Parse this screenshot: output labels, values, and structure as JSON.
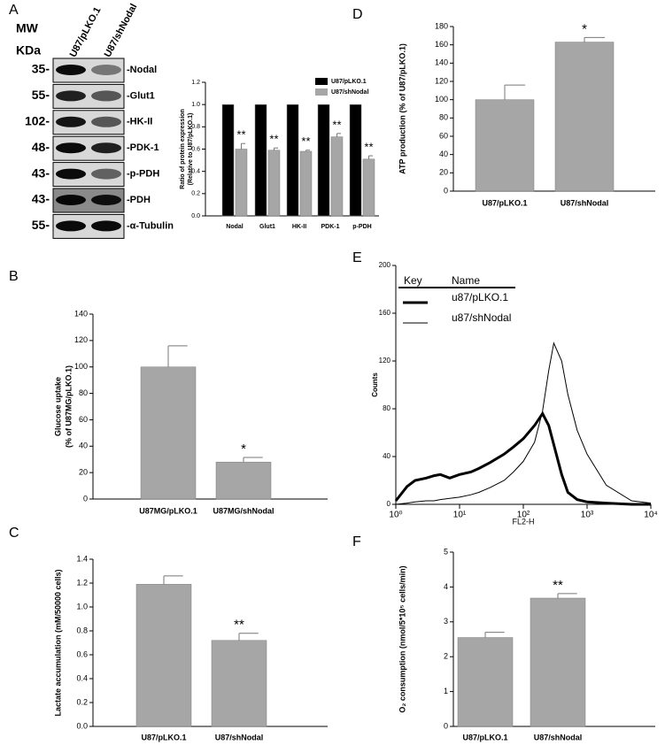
{
  "panels": [
    "A",
    "B",
    "C",
    "D",
    "E",
    "F"
  ],
  "blot": {
    "mw_title": "MW",
    "mw_unit": "KDa",
    "lanes": [
      "U87/pLKO.1",
      "U87/shNodal"
    ],
    "rows": [
      {
        "mw": "35-",
        "label": "-Nodal"
      },
      {
        "mw": "55-",
        "label": "-Glut1"
      },
      {
        "mw": "102-",
        "label": "-HK-II"
      },
      {
        "mw": "48-",
        "label": "-PDK-1"
      },
      {
        "mw": "43-",
        "label": "-p-PDH"
      },
      {
        "mw": "43-",
        "label": "-PDH"
      },
      {
        "mw": "55-",
        "label": "-α-Tubulin"
      }
    ]
  },
  "chart_data": [
    {
      "type": "bar",
      "ylabel": [
        "Ratio of protein expression",
        "(Relative to U87/pLKO.1)"
      ],
      "categories": [
        "Nodal",
        "Glut1",
        "HK-II",
        "PDK-1",
        "p-PDH"
      ],
      "series": [
        {
          "name": "U87/pLKO.1",
          "color": "#000000",
          "values": [
            1,
            1,
            1,
            1,
            1
          ]
        },
        {
          "name": "U87/shNodal",
          "color": "#a6a6a6",
          "values": [
            0.6,
            0.59,
            0.58,
            0.71,
            0.51
          ],
          "errors": [
            0.05,
            0.02,
            0.01,
            0.03,
            0.03
          ],
          "annotations": [
            "**",
            "**",
            "**",
            "**",
            "**"
          ]
        }
      ],
      "ylim": [
        0,
        1.2
      ],
      "yticks": [
        {
          "value": 0,
          "label": "0.0"
        },
        {
          "value": 0.2,
          "label": "0.2"
        },
        {
          "value": 0.4,
          "label": "0.4"
        },
        {
          "value": 0.6,
          "label": "0.6"
        },
        {
          "value": 0.8,
          "label": "0.8"
        },
        {
          "value": 1,
          "label": "1.0"
        },
        {
          "value": 1.2,
          "label": "1.2"
        }
      ]
    },
    {
      "type": "bar",
      "ylabel": [
        "Glucose uptake",
        "(% of U87MG/pLKO.1)"
      ],
      "categories": [
        "U87MG/pLKO.1",
        "U87MG/shNodal"
      ],
      "series": [
        {
          "color": "#a6a6a6",
          "values": [
            100,
            28
          ],
          "errors": [
            16,
            3.5
          ],
          "annotations": [
            null,
            "*"
          ]
        }
      ],
      "ylim": [
        0,
        140
      ],
      "yticks": [
        0,
        20,
        40,
        60,
        80,
        100,
        120,
        140
      ]
    },
    {
      "type": "bar",
      "ylabel": [
        "Lactate accumulation (mM/50000 cells)"
      ],
      "categories": [
        "U87/pLKO.1",
        "U87/shNodal"
      ],
      "series": [
        {
          "color": "#a6a6a6",
          "values": [
            1.19,
            0.72
          ],
          "errors": [
            0.07,
            0.06
          ],
          "annotations": [
            null,
            "**"
          ]
        }
      ],
      "ylim": [
        0,
        1.4
      ],
      "yticks": [
        {
          "value": 0,
          "label": "0.0"
        },
        {
          "value": 0.2,
          "label": "0.2"
        },
        {
          "value": 0.4,
          "label": "0.4"
        },
        {
          "value": 0.6,
          "label": "0.6"
        },
        {
          "value": 0.8,
          "label": "0.8"
        },
        {
          "value": 1,
          "label": "1.0"
        },
        {
          "value": 1.2,
          "label": "1.2"
        },
        {
          "value": 1.4,
          "label": "1.4"
        }
      ]
    },
    {
      "type": "bar",
      "ylabel": [
        "ATP production (% of U87/pLKO.1)"
      ],
      "categories": [
        "U87/pLKO.1",
        "U87/shNodal"
      ],
      "series": [
        {
          "color": "#a6a6a6",
          "values": [
            100,
            163
          ],
          "errors": [
            16,
            5
          ],
          "annotations": [
            null,
            "*"
          ]
        }
      ],
      "ylim": [
        0,
        180
      ],
      "yticks": [
        0,
        20,
        40,
        60,
        80,
        100,
        120,
        140,
        160,
        180
      ]
    },
    {
      "type": "line",
      "ylabel": [
        "Counts"
      ],
      "xlabel": "FL2-H",
      "xlog": true,
      "legend_title": [
        "Key",
        "Name"
      ],
      "x": [
        1,
        1.5,
        2,
        3,
        4,
        5,
        7,
        10,
        15,
        20,
        30,
        50,
        70,
        100,
        150,
        200,
        250,
        300,
        400,
        500,
        700,
        1000,
        2000,
        5000,
        10000
      ],
      "series": [
        {
          "name": "u87/pLKO.1",
          "color": "#000000",
          "width": 3,
          "values": [
            3,
            15,
            20,
            22,
            24,
            25,
            22,
            25,
            27,
            30,
            35,
            42,
            48,
            55,
            66,
            76,
            66,
            50,
            25,
            10,
            4,
            2,
            1,
            0,
            0
          ]
        },
        {
          "name": "u87/shNodal",
          "color": "#000000",
          "width": 1,
          "values": [
            0,
            1,
            2,
            3,
            3,
            4,
            5,
            6,
            8,
            10,
            14,
            20,
            27,
            36,
            52,
            78,
            112,
            135,
            120,
            92,
            62,
            42,
            16,
            3,
            1
          ]
        }
      ],
      "xlim": [
        1,
        10000
      ],
      "xticks": [
        {
          "value": 1,
          "label": "10⁰"
        },
        {
          "value": 10,
          "label": "10¹"
        },
        {
          "value": 100,
          "label": "10²"
        },
        {
          "value": 1000,
          "label": "10³"
        },
        {
          "value": 10000,
          "label": "10⁴"
        }
      ],
      "ylim": [
        0,
        200
      ],
      "yticks": [
        0,
        40,
        80,
        120,
        160,
        200
      ]
    },
    {
      "type": "bar",
      "ylabel": [
        "O₂ consumption (nmol/5*10⁵ cells/min)"
      ],
      "categories": [
        "U87/pLKO.1",
        "U87/shNodal"
      ],
      "series": [
        {
          "color": "#a6a6a6",
          "values": [
            2.55,
            3.68
          ],
          "errors": [
            0.15,
            0.13
          ],
          "annotations": [
            null,
            "**"
          ]
        }
      ],
      "ylim": [
        0,
        5
      ],
      "yticks": [
        0,
        1,
        2,
        3,
        4,
        5
      ]
    }
  ]
}
